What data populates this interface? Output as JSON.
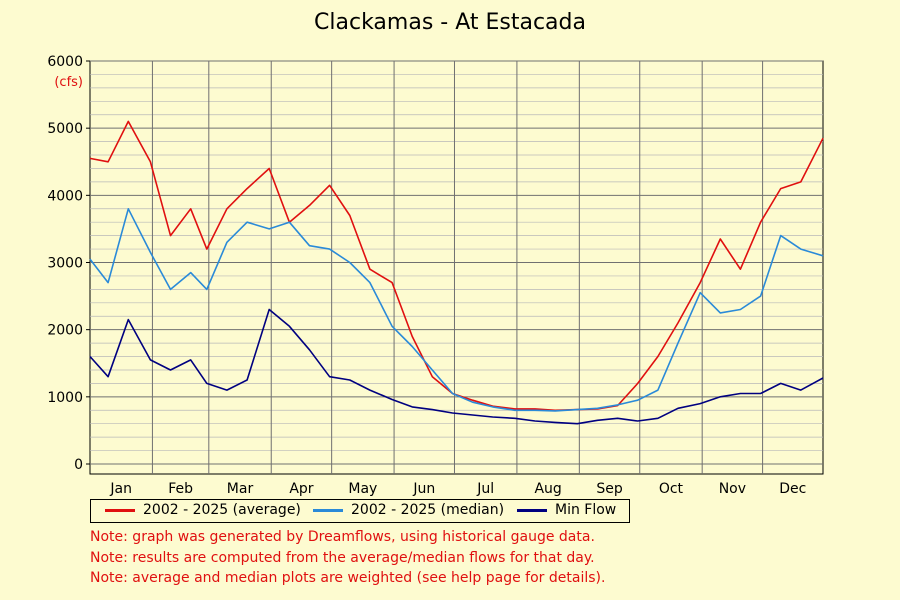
{
  "title": "Clackamas - At Estacada",
  "chart_data": {
    "type": "line",
    "title": "Clackamas - At Estacada",
    "ylabel_unit": "(cfs)",
    "ylim": [
      0,
      6000
    ],
    "yticks": [
      0,
      1000,
      2000,
      3000,
      4000,
      5000,
      6000
    ],
    "months": [
      "Jan",
      "Feb",
      "Mar",
      "Apr",
      "May",
      "Jun",
      "Jul",
      "Aug",
      "Sep",
      "Oct",
      "Nov",
      "Dec"
    ],
    "x_note": "day of year (1-365), sampled",
    "x": [
      1,
      10,
      20,
      31,
      41,
      51,
      59,
      69,
      79,
      90,
      100,
      110,
      120,
      130,
      140,
      151,
      161,
      171,
      181,
      191,
      201,
      212,
      222,
      232,
      243,
      253,
      263,
      273,
      283,
      293,
      304,
      314,
      324,
      334,
      344,
      354,
      365
    ],
    "series": [
      {
        "name": "2002 - 2025 (average)",
        "color": "#e01010",
        "values": [
          4550,
          4500,
          5100,
          4500,
          3400,
          3800,
          3200,
          3800,
          4100,
          4400,
          3600,
          3850,
          4150,
          3700,
          2900,
          2700,
          1900,
          1300,
          1050,
          950,
          860,
          820,
          820,
          800,
          810,
          820,
          870,
          1200,
          1600,
          2100,
          2700,
          3350,
          2900,
          3600,
          4100,
          4200,
          4850
        ]
      },
      {
        "name": "2002 - 2025 (median)",
        "color": "#2a8ad8",
        "values": [
          3050,
          2700,
          3800,
          3150,
          2600,
          2850,
          2600,
          3300,
          3600,
          3500,
          3600,
          3250,
          3200,
          3000,
          2700,
          2050,
          1750,
          1400,
          1050,
          920,
          850,
          800,
          800,
          790,
          810,
          830,
          880,
          950,
          1100,
          1800,
          2550,
          2250,
          2300,
          2500,
          3400,
          3200,
          3100
        ]
      },
      {
        "name": "Min Flow",
        "color": "#000080",
        "values": [
          1600,
          1300,
          2150,
          1550,
          1400,
          1550,
          1200,
          1100,
          1250,
          2300,
          2050,
          1700,
          1300,
          1250,
          1100,
          960,
          850,
          810,
          760,
          730,
          700,
          680,
          640,
          620,
          600,
          650,
          680,
          640,
          680,
          830,
          900,
          1000,
          1050,
          1050,
          1200,
          1100,
          1280
        ]
      }
    ],
    "legend_position": "bottom",
    "grid": true
  },
  "notes": [
    "Note: graph was generated by Dreamflows, using historical gauge data.",
    "Note: results are computed from the average/median flows for that day.",
    "Note: average and median plots are weighted (see help page for details)."
  ]
}
